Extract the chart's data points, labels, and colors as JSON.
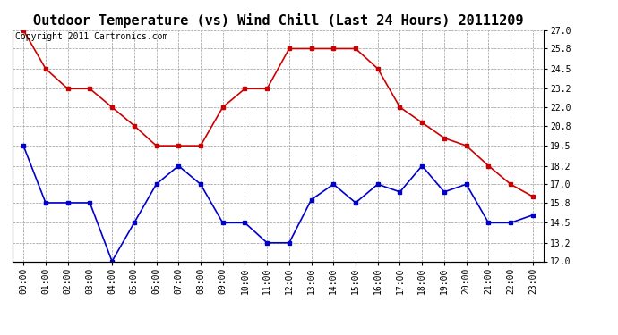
{
  "title": "Outdoor Temperature (vs) Wind Chill (Last 24 Hours) 20111209",
  "copyright_text": "Copyright 2011 Cartronics.com",
  "hours": [
    "00:00",
    "01:00",
    "02:00",
    "03:00",
    "04:00",
    "05:00",
    "06:00",
    "07:00",
    "08:00",
    "09:00",
    "10:00",
    "11:00",
    "12:00",
    "13:00",
    "14:00",
    "15:00",
    "16:00",
    "17:00",
    "18:00",
    "19:00",
    "20:00",
    "21:00",
    "22:00",
    "23:00"
  ],
  "red_line": [
    27.0,
    24.5,
    23.2,
    23.2,
    22.0,
    20.8,
    19.5,
    19.5,
    19.5,
    22.0,
    23.2,
    23.2,
    25.8,
    25.8,
    25.8,
    25.8,
    24.5,
    22.0,
    21.0,
    20.0,
    19.5,
    18.2,
    17.0,
    16.2
  ],
  "blue_line": [
    19.5,
    15.8,
    15.8,
    15.8,
    12.0,
    14.5,
    17.0,
    18.2,
    17.0,
    14.5,
    14.5,
    13.2,
    13.2,
    16.0,
    17.0,
    15.8,
    17.0,
    16.5,
    18.2,
    16.5,
    17.0,
    14.5,
    14.5,
    15.0
  ],
  "ylim": [
    12.0,
    27.0
  ],
  "yticks_right": [
    12.0,
    13.2,
    14.5,
    15.8,
    17.0,
    18.2,
    19.5,
    20.8,
    22.0,
    23.2,
    24.5,
    25.8,
    27.0
  ],
  "red_color": "#cc0000",
  "blue_color": "#0000cc",
  "background_color": "#ffffff",
  "grid_color": "#999999",
  "title_fontsize": 11,
  "copyright_fontsize": 7,
  "tick_fontsize": 7,
  "ytick_fontsize": 7
}
